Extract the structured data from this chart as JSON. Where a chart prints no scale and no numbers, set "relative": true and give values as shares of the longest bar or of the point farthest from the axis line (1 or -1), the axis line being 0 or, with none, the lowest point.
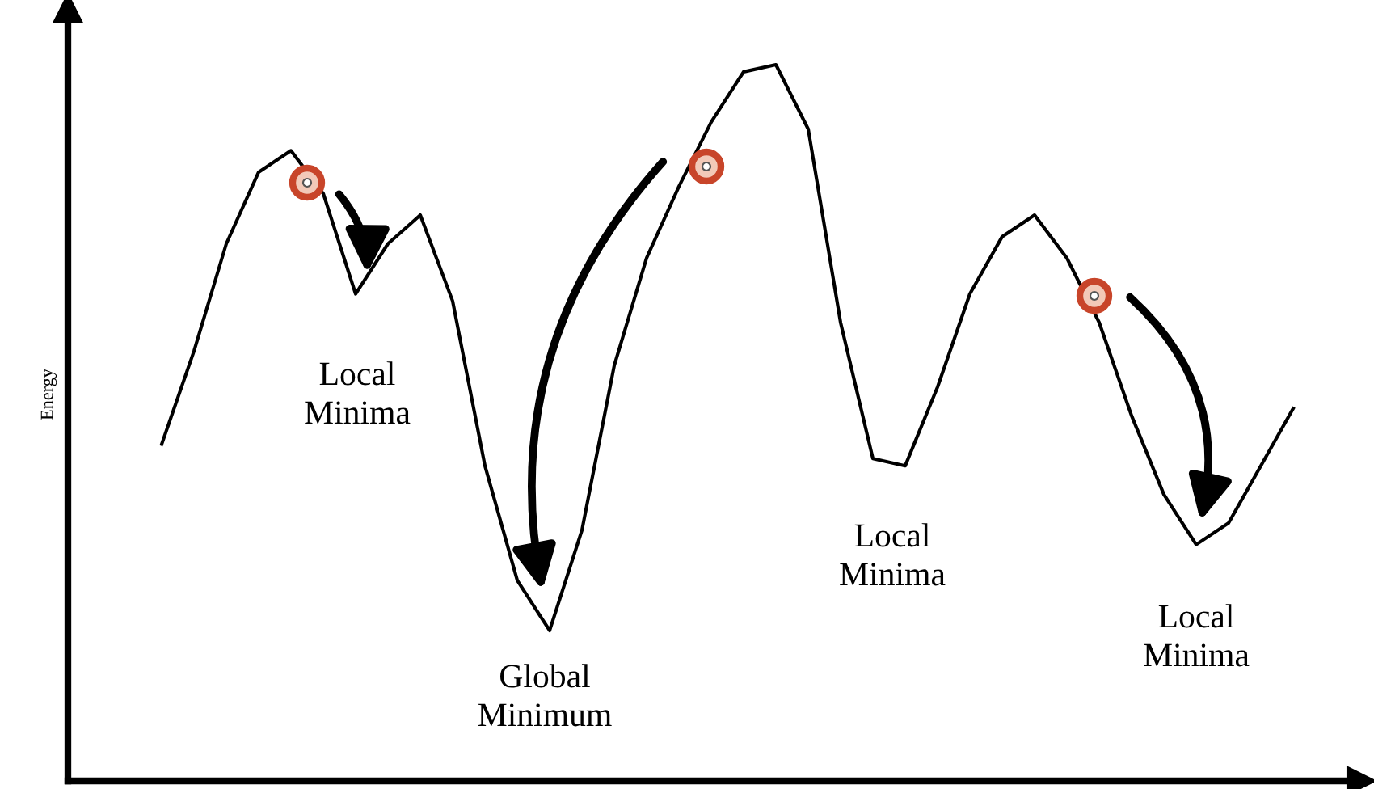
{
  "chart_data": {
    "type": "line",
    "relative": true,
    "ylabel": "Energy",
    "categories": [
      null,
      null,
      null,
      null,
      null,
      null,
      null,
      null,
      null,
      null,
      null,
      null,
      null,
      null,
      null,
      null,
      null,
      null,
      null,
      null,
      null,
      null,
      null,
      null,
      null,
      null,
      null,
      null,
      null,
      null,
      null,
      null,
      null,
      null,
      null,
      null
    ],
    "series": [
      {
        "color": "#000000",
        "values": [
          0.47,
          0.6,
          0.75,
          0.85,
          0.88,
          0.82,
          0.68,
          0.75,
          0.79,
          0.67,
          0.44,
          0.28,
          0.21,
          0.35,
          0.58,
          0.73,
          0.83,
          0.92,
          0.99,
          1.0,
          0.91,
          0.64,
          0.45,
          0.44,
          0.55,
          0.68,
          0.76,
          0.79,
          0.73,
          0.64,
          0.51,
          0.4,
          0.33,
          0.36,
          0.44,
          0.52
        ]
      }
    ],
    "annotations": [
      "Local\nMinima",
      "Global\nMinimum",
      "Local\nMinima",
      "Local\nMinima"
    ],
    "legend": false
  }
}
